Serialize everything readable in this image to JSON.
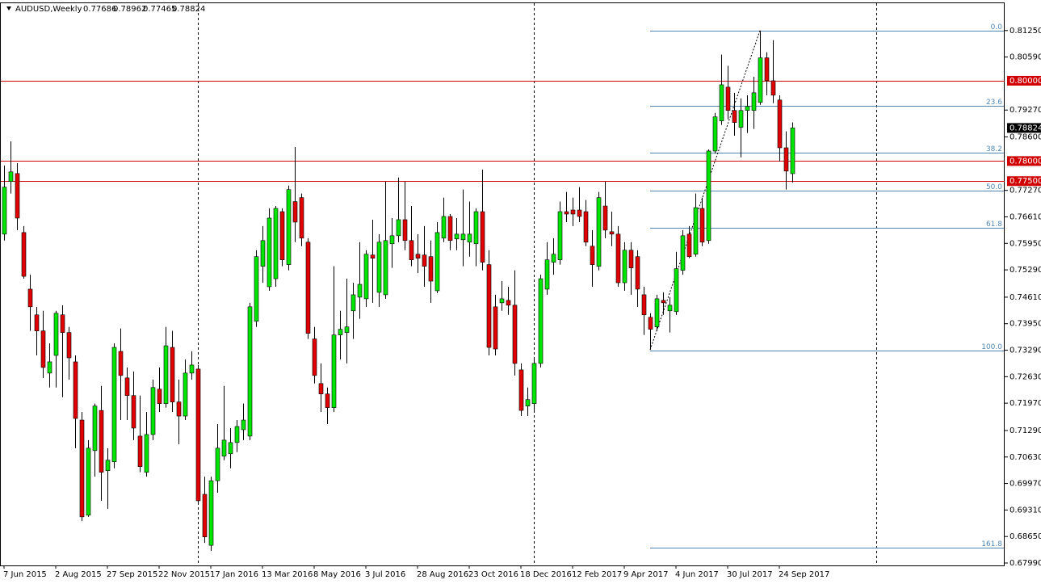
{
  "chart_data": {
    "type": "candlestick",
    "symbol": "AUDUSD,Weekly",
    "quote": [
      "0.77686",
      "0.78962",
      "0.77465",
      "0.78824"
    ],
    "last_price_label": "0.78824",
    "up_color": "#00e600",
    "down_color": "#e00000",
    "categories": [
      "7 Jun 2015",
      null,
      null,
      null,
      null,
      null,
      null,
      null,
      "2 Aug 2015",
      null,
      null,
      null,
      null,
      null,
      null,
      null,
      "27 Sep 2015",
      null,
      null,
      null,
      null,
      null,
      null,
      null,
      "22 Nov 2015",
      null,
      null,
      null,
      null,
      null,
      null,
      null,
      "17 Jan 2016",
      null,
      null,
      null,
      null,
      null,
      null,
      null,
      "13 Mar 2016",
      null,
      null,
      null,
      null,
      null,
      null,
      null,
      "8 May 2016",
      null,
      null,
      null,
      null,
      null,
      null,
      null,
      "3 Jul 2016",
      null,
      null,
      null,
      null,
      null,
      null,
      null,
      "28 Aug 2016",
      null,
      null,
      null,
      null,
      null,
      null,
      null,
      "23 Oct 2016",
      null,
      null,
      null,
      null,
      null,
      null,
      null,
      "18 Dec 2016",
      null,
      null,
      null,
      null,
      null,
      null,
      null,
      "12 Feb 2017",
      null,
      null,
      null,
      null,
      null,
      null,
      null,
      "9 Apr 2017",
      null,
      null,
      null,
      null,
      null,
      null,
      null,
      "4 Jun 2017",
      null,
      null,
      null,
      null,
      null,
      null,
      null,
      "30 Jul 2017",
      null,
      null,
      null,
      null,
      null,
      null,
      null,
      "24 Sep 2017",
      null,
      null
    ],
    "ohlc": [
      [
        0.7618,
        0.7789,
        0.7602,
        0.7735
      ],
      [
        0.7749,
        0.7849,
        0.7719,
        0.7773
      ],
      [
        0.7769,
        0.7795,
        0.7628,
        0.7658
      ],
      [
        0.7622,
        0.7638,
        0.7507,
        0.7513
      ],
      [
        0.7481,
        0.7517,
        0.7377,
        0.7437
      ],
      [
        0.7417,
        0.7437,
        0.7316,
        0.7377
      ],
      [
        0.7377,
        0.7427,
        0.726,
        0.7286
      ],
      [
        0.7272,
        0.7346,
        0.7236,
        0.73
      ],
      [
        0.7316,
        0.7427,
        0.7236,
        0.7421
      ],
      [
        0.7417,
        0.7441,
        0.7212,
        0.7373
      ],
      [
        0.7373,
        0.7387,
        0.7256,
        0.731
      ],
      [
        0.73,
        0.7316,
        0.7085,
        0.7159
      ],
      [
        0.7155,
        0.7175,
        0.6904,
        0.6914
      ],
      [
        0.6918,
        0.7105,
        0.6914,
        0.7085
      ],
      [
        0.7079,
        0.7196,
        0.7014,
        0.719
      ],
      [
        0.7179,
        0.724,
        0.6954,
        0.7025
      ],
      [
        0.7029,
        0.7085,
        0.6934,
        0.7055
      ],
      [
        0.7051,
        0.7346,
        0.7035,
        0.7336
      ],
      [
        0.7326,
        0.7383,
        0.7155,
        0.7266
      ],
      [
        0.726,
        0.7286,
        0.7155,
        0.7216
      ],
      [
        0.7216,
        0.7276,
        0.7105,
        0.7135
      ],
      [
        0.7115,
        0.7216,
        0.7025,
        0.7039
      ],
      [
        0.7025,
        0.7175,
        0.7014,
        0.7119
      ],
      [
        0.7119,
        0.7256,
        0.7105,
        0.7236
      ],
      [
        0.7232,
        0.7286,
        0.7175,
        0.7196
      ],
      [
        0.7196,
        0.7387,
        0.7186,
        0.734
      ],
      [
        0.7336,
        0.7377,
        0.7175,
        0.72
      ],
      [
        0.72,
        0.7256,
        0.7095,
        0.7165
      ],
      [
        0.7165,
        0.7306,
        0.7155,
        0.7272
      ],
      [
        0.7272,
        0.7326,
        0.7256,
        0.7292
      ],
      [
        0.7282,
        0.7292,
        0.6944,
        0.6954
      ],
      [
        0.697,
        0.7014,
        0.6849,
        0.6864
      ],
      [
        0.6843,
        0.7014,
        0.6829,
        0.7004
      ],
      [
        0.7004,
        0.7145,
        0.6974,
        0.7085
      ],
      [
        0.7065,
        0.724,
        0.7055,
        0.7105
      ],
      [
        0.7071,
        0.7135,
        0.7035,
        0.7099
      ],
      [
        0.7099,
        0.7155,
        0.7075,
        0.7139
      ],
      [
        0.7131,
        0.7196,
        0.7105,
        0.7155
      ],
      [
        0.7115,
        0.7447,
        0.7105,
        0.7437
      ],
      [
        0.7401,
        0.7578,
        0.7387,
        0.7562
      ],
      [
        0.7538,
        0.7638,
        0.7497,
        0.7602
      ],
      [
        0.7487,
        0.7682,
        0.7477,
        0.7658
      ],
      [
        0.7507,
        0.7688,
        0.7487,
        0.7682
      ],
      [
        0.7674,
        0.7682,
        0.7538,
        0.7554
      ],
      [
        0.7542,
        0.7739,
        0.7528,
        0.7729
      ],
      [
        0.7699,
        0.7835,
        0.7598,
        0.7648
      ],
      [
        0.7709,
        0.7719,
        0.7588,
        0.7608
      ],
      [
        0.7598,
        0.7608,
        0.7357,
        0.7371
      ],
      [
        0.7357,
        0.7387,
        0.7246,
        0.7266
      ],
      [
        0.7246,
        0.7296,
        0.7175,
        0.722
      ],
      [
        0.722,
        0.7236,
        0.7145,
        0.7186
      ],
      [
        0.7186,
        0.7538,
        0.7175,
        0.7367
      ],
      [
        0.7367,
        0.7427,
        0.7306,
        0.7381
      ],
      [
        0.7373,
        0.7507,
        0.7296,
        0.7387
      ],
      [
        0.7427,
        0.7497,
        0.7357,
        0.7467
      ],
      [
        0.7461,
        0.7598,
        0.7407,
        0.7493
      ],
      [
        0.7457,
        0.7578,
        0.7437,
        0.7568
      ],
      [
        0.7566,
        0.7654,
        0.7447,
        0.7558
      ],
      [
        0.7473,
        0.7618,
        0.7437,
        0.7598
      ],
      [
        0.7467,
        0.7749,
        0.7457,
        0.7602
      ],
      [
        0.7594,
        0.7658,
        0.7534,
        0.7614
      ],
      [
        0.7614,
        0.7759,
        0.7598,
        0.7654
      ],
      [
        0.7654,
        0.7749,
        0.7578,
        0.7602
      ],
      [
        0.7602,
        0.7688,
        0.7538,
        0.7554
      ],
      [
        0.7568,
        0.7618,
        0.7521,
        0.7558
      ],
      [
        0.7566,
        0.7638,
        0.7487,
        0.7538
      ],
      [
        0.7562,
        0.7602,
        0.7447,
        0.7501
      ],
      [
        0.7477,
        0.7648,
        0.7471,
        0.7622
      ],
      [
        0.7608,
        0.7709,
        0.7598,
        0.7662
      ],
      [
        0.7662,
        0.7668,
        0.7578,
        0.7602
      ],
      [
        0.7606,
        0.7658,
        0.7578,
        0.7618
      ],
      [
        0.7604,
        0.7729,
        0.7538,
        0.7618
      ],
      [
        0.7598,
        0.7699,
        0.7562,
        0.7618
      ],
      [
        0.7594,
        0.7682,
        0.7538,
        0.7674
      ],
      [
        0.7674,
        0.7779,
        0.7528,
        0.7548
      ],
      [
        0.7542,
        0.7578,
        0.7316,
        0.7336
      ],
      [
        0.7437,
        0.7467,
        0.7316,
        0.7332
      ],
      [
        0.7447,
        0.7501,
        0.7427,
        0.7457
      ],
      [
        0.7453,
        0.7487,
        0.7417,
        0.7441
      ],
      [
        0.7441,
        0.7528,
        0.7266,
        0.7296
      ],
      [
        0.728,
        0.7296,
        0.7165,
        0.7179
      ],
      [
        0.719,
        0.7236,
        0.7165,
        0.7206
      ],
      [
        0.7196,
        0.7306,
        0.7175,
        0.7296
      ],
      [
        0.7296,
        0.7517,
        0.7286,
        0.7507
      ],
      [
        0.7481,
        0.7598,
        0.7467,
        0.7554
      ],
      [
        0.7548,
        0.7608,
        0.7517,
        0.7568
      ],
      [
        0.7554,
        0.7699,
        0.7542,
        0.7674
      ],
      [
        0.7674,
        0.7723,
        0.7648,
        0.7668
      ],
      [
        0.7678,
        0.7709,
        0.7638,
        0.7668
      ],
      [
        0.7678,
        0.7735,
        0.7648,
        0.7662
      ],
      [
        0.7674,
        0.7703,
        0.7588,
        0.7598
      ],
      [
        0.7588,
        0.7628,
        0.7487,
        0.7542
      ],
      [
        0.7538,
        0.7723,
        0.7528,
        0.7709
      ],
      [
        0.7688,
        0.7749,
        0.7608,
        0.7628
      ],
      [
        0.7624,
        0.7674,
        0.7588,
        0.7618
      ],
      [
        0.7618,
        0.7638,
        0.7487,
        0.7497
      ],
      [
        0.7497,
        0.7598,
        0.7477,
        0.7578
      ],
      [
        0.7578,
        0.7598,
        0.7467,
        0.7534
      ],
      [
        0.7562,
        0.7578,
        0.7437,
        0.7481
      ],
      [
        0.7467,
        0.7487,
        0.7367,
        0.7417
      ],
      [
        0.7411,
        0.7421,
        0.733,
        0.7381
      ],
      [
        0.7387,
        0.7467,
        0.7377,
        0.7457
      ],
      [
        0.7453,
        0.7473,
        0.7417,
        0.7447
      ],
      [
        0.7427,
        0.7461,
        0.7373,
        0.7441
      ],
      [
        0.7425,
        0.7574,
        0.7417,
        0.7532
      ],
      [
        0.7528,
        0.7628,
        0.7517,
        0.7614
      ],
      [
        0.7618,
        0.7638,
        0.7558,
        0.7562
      ],
      [
        0.7568,
        0.7719,
        0.7562,
        0.7684
      ],
      [
        0.7682,
        0.7709,
        0.7588,
        0.7598
      ],
      [
        0.7602,
        0.7829,
        0.7594,
        0.7825
      ],
      [
        0.7825,
        0.792,
        0.7819,
        0.791
      ],
      [
        0.79,
        0.8065,
        0.789,
        0.799
      ],
      [
        0.7984,
        0.8037,
        0.7904,
        0.7926
      ],
      [
        0.7926,
        0.797,
        0.7863,
        0.7896
      ],
      [
        0.7884,
        0.7956,
        0.7809,
        0.7926
      ],
      [
        0.7926,
        0.7964,
        0.787,
        0.7936
      ],
      [
        0.7926,
        0.801,
        0.788,
        0.797
      ],
      [
        0.7946,
        0.8125,
        0.794,
        0.8057
      ],
      [
        0.8057,
        0.8071,
        0.7964,
        0.8
      ],
      [
        0.8,
        0.8101,
        0.7944,
        0.7964
      ],
      [
        0.7952,
        0.7964,
        0.7799,
        0.7833
      ],
      [
        0.7833,
        0.7874,
        0.7729,
        0.7775
      ],
      [
        0.77686,
        0.78962,
        0.77465,
        0.78824
      ]
    ],
    "ylim": [
      0.6793,
      0.8195
    ],
    "yticks": [
      {
        "value": 0.8125,
        "label": "0.81250"
      },
      {
        "value": 0.8059,
        "label": "0.80590"
      },
      {
        "value": 0.7927,
        "label": "0.79270"
      },
      {
        "value": 0.786,
        "label": "0.78600"
      },
      {
        "value": 0.7727,
        "label": "0.77270"
      },
      {
        "value": 0.7661,
        "label": "0.76610"
      },
      {
        "value": 0.7595,
        "label": "0.75950"
      },
      {
        "value": 0.7529,
        "label": "0.75290"
      },
      {
        "value": 0.7461,
        "label": "0.74610"
      },
      {
        "value": 0.7395,
        "label": "0.73950"
      },
      {
        "value": 0.7329,
        "label": "0.73290"
      },
      {
        "value": 0.7263,
        "label": "0.72630"
      },
      {
        "value": 0.7197,
        "label": "0.71970"
      },
      {
        "value": 0.7129,
        "label": "0.71290"
      },
      {
        "value": 0.7063,
        "label": "0.70630"
      },
      {
        "value": 0.6997,
        "label": "0.69970"
      },
      {
        "value": 0.6931,
        "label": "0.69310"
      },
      {
        "value": 0.6865,
        "label": "0.68650"
      },
      {
        "value": 0.6799,
        "label": "0.67990"
      }
    ],
    "hlines": [
      {
        "value": 0.8,
        "label": "0.80000"
      },
      {
        "value": 0.78,
        "label": "0.78000"
      },
      {
        "value": 0.775,
        "label": "0.77500"
      }
    ],
    "hline_color": "#d00000",
    "fibonacci": {
      "color": "#4f86b4",
      "levels": [
        {
          "value": 0.8125,
          "label": "0.0"
        },
        {
          "value": 0.7937,
          "label": "23.6"
        },
        {
          "value": 0.7821,
          "label": "38.2"
        },
        {
          "value": 0.7727,
          "label": "50.0"
        },
        {
          "value": 0.7633,
          "label": "61.8"
        },
        {
          "value": 0.7329,
          "label": "100.0"
        },
        {
          "value": 0.6837,
          "label": "161.8"
        }
      ]
    }
  }
}
